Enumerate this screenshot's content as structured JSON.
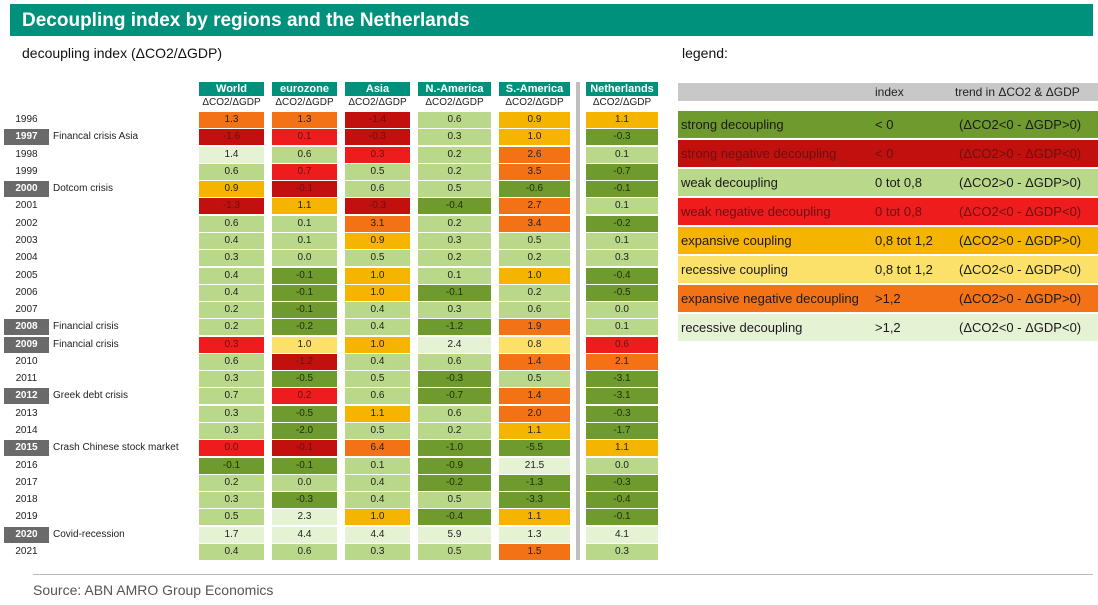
{
  "title": "Decoupling index by regions and the Netherlands",
  "subtitle": "decoupling index (ΔCO2/ΔGDP)",
  "legend_title": "legend:",
  "source": "Source: ABN AMRO Group Economics",
  "colors": {
    "header": "#00917c",
    "sd": "#6f9a2e",
    "snd": "#c1100d",
    "wd": "#b9d88a",
    "wnd": "#ee1c1c",
    "ec": "#f5b400",
    "rc": "#fbe06a",
    "end": "#f47216",
    "rd": "#e6f2d4"
  },
  "chart_data": {
    "type": "table",
    "title": "decoupling index (ΔCO2/ΔGDP)",
    "columns": [
      {
        "name": "World",
        "unit": "ΔCO2/ΔGDP"
      },
      {
        "name": "eurozone",
        "unit": "ΔCO2/ΔGDP"
      },
      {
        "name": "Asia",
        "unit": "ΔCO2/ΔGDP"
      },
      {
        "name": "N.-America",
        "unit": "ΔCO2/ΔGDP"
      },
      {
        "name": "S.-America",
        "unit": "ΔCO2/ΔGDP"
      },
      {
        "name": "Netherlands",
        "unit": "ΔCO2/ΔGDP"
      }
    ],
    "rows": [
      {
        "year": "1996",
        "event": "",
        "hl": false,
        "values": [
          "1.3",
          "1.3",
          "-1.4",
          "0.6",
          "0.9",
          "1.1"
        ],
        "cats": [
          "end",
          "end",
          "snd",
          "wd",
          "ec",
          "ec"
        ]
      },
      {
        "year": "1997",
        "event": "Financal crisis Asia",
        "hl": true,
        "values": [
          "-1.6",
          "0.1",
          "-0.3",
          "0.3",
          "1.0",
          "-0.3"
        ],
        "cats": [
          "snd",
          "wnd",
          "snd",
          "wd",
          "ec",
          "sd"
        ]
      },
      {
        "year": "1998",
        "event": "",
        "hl": false,
        "values": [
          "1.4",
          "0.6",
          "0.3",
          "0.2",
          "2.6",
          "0.1"
        ],
        "cats": [
          "rd",
          "wd",
          "wnd",
          "wd",
          "end",
          "wd"
        ]
      },
      {
        "year": "1999",
        "event": "",
        "hl": false,
        "values": [
          "0.6",
          "0.7",
          "0.5",
          "0.2",
          "3.5",
          "-0.7"
        ],
        "cats": [
          "wd",
          "wnd",
          "wd",
          "wd",
          "end",
          "sd"
        ]
      },
      {
        "year": "2000",
        "event": "Dotcom crisis",
        "hl": true,
        "values": [
          "0.9",
          "-0.1",
          "0.6",
          "0.5",
          "-0.6",
          "-0.1"
        ],
        "cats": [
          "ec",
          "snd",
          "wd",
          "wd",
          "sd",
          "sd"
        ]
      },
      {
        "year": "2001",
        "event": "",
        "hl": false,
        "values": [
          "-1.3",
          "1.1",
          "-0.3",
          "-0.4",
          "2.7",
          "0.1"
        ],
        "cats": [
          "snd",
          "ec",
          "snd",
          "sd",
          "end",
          "wd"
        ]
      },
      {
        "year": "2002",
        "event": "",
        "hl": false,
        "values": [
          "0.6",
          "0.1",
          "3.1",
          "0.2",
          "3.4",
          "-0.2"
        ],
        "cats": [
          "wd",
          "wd",
          "end",
          "wd",
          "end",
          "sd"
        ]
      },
      {
        "year": "2003",
        "event": "",
        "hl": false,
        "values": [
          "0.4",
          "0.1",
          "0.9",
          "0.3",
          "0.5",
          "0.1"
        ],
        "cats": [
          "wd",
          "wd",
          "ec",
          "wd",
          "wd",
          "wd"
        ]
      },
      {
        "year": "2004",
        "event": "",
        "hl": false,
        "values": [
          "0.3",
          "0.0",
          "0.5",
          "0.2",
          "0.2",
          "0.3"
        ],
        "cats": [
          "wd",
          "wd",
          "wd",
          "wd",
          "wd",
          "wd"
        ]
      },
      {
        "year": "2005",
        "event": "",
        "hl": false,
        "values": [
          "0.4",
          "-0.1",
          "1.0",
          "0.1",
          "1.0",
          "-0.4"
        ],
        "cats": [
          "wd",
          "sd",
          "ec",
          "wd",
          "ec",
          "sd"
        ]
      },
      {
        "year": "2006",
        "event": "",
        "hl": false,
        "values": [
          "0.4",
          "-0.1",
          "1.0",
          "-0.1",
          "0.2",
          "-0.5"
        ],
        "cats": [
          "wd",
          "sd",
          "ec",
          "sd",
          "wd",
          "sd"
        ]
      },
      {
        "year": "2007",
        "event": "",
        "hl": false,
        "values": [
          "0.2",
          "-0.1",
          "0.4",
          "0.3",
          "0.6",
          "0.0"
        ],
        "cats": [
          "wd",
          "sd",
          "wd",
          "wd",
          "wd",
          "wd"
        ]
      },
      {
        "year": "2008",
        "event": "Financial crisis",
        "hl": true,
        "values": [
          "0.2",
          "-0.2",
          "0.4",
          "-1.2",
          "1.9",
          "0.1"
        ],
        "cats": [
          "wd",
          "sd",
          "wd",
          "sd",
          "end",
          "wd"
        ]
      },
      {
        "year": "2009",
        "event": "Financial crisis",
        "hl": true,
        "values": [
          "0.3",
          "1.0",
          "1.0",
          "2.4",
          "0.8",
          "0.6"
        ],
        "cats": [
          "wnd",
          "rc",
          "ec",
          "rd",
          "rc",
          "wnd"
        ]
      },
      {
        "year": "2010",
        "event": "",
        "hl": false,
        "values": [
          "0.6",
          "-1.2",
          "0.4",
          "0.6",
          "1.4",
          "2.1"
        ],
        "cats": [
          "wd",
          "snd",
          "wd",
          "wd",
          "end",
          "end"
        ]
      },
      {
        "year": "2011",
        "event": "",
        "hl": false,
        "values": [
          "0.3",
          "-0.5",
          "0.5",
          "-0.3",
          "0.5",
          "-3.1"
        ],
        "cats": [
          "wd",
          "sd",
          "wd",
          "sd",
          "wd",
          "sd"
        ]
      },
      {
        "year": "2012",
        "event": "Greek debt crisis",
        "hl": true,
        "values": [
          "0.7",
          "0.2",
          "0.6",
          "-0.7",
          "1.4",
          "-3.1"
        ],
        "cats": [
          "wd",
          "wnd",
          "wd",
          "sd",
          "end",
          "sd"
        ]
      },
      {
        "year": "2013",
        "event": "",
        "hl": false,
        "values": [
          "0.3",
          "-0.5",
          "1.1",
          "0.6",
          "2.0",
          "-0.3"
        ],
        "cats": [
          "wd",
          "sd",
          "ec",
          "wd",
          "end",
          "sd"
        ]
      },
      {
        "year": "2014",
        "event": "",
        "hl": false,
        "values": [
          "0.3",
          "-2.0",
          "0.5",
          "0.2",
          "1.1",
          "-1.7"
        ],
        "cats": [
          "wd",
          "sd",
          "wd",
          "wd",
          "ec",
          "sd"
        ]
      },
      {
        "year": "2015",
        "event": "Crash Chinese stock market",
        "hl": true,
        "values": [
          "0.0",
          "-0.1",
          "6.4",
          "-1.0",
          "-5.5",
          "1.1"
        ],
        "cats": [
          "wnd",
          "snd",
          "end",
          "sd",
          "sd",
          "ec"
        ]
      },
      {
        "year": "2016",
        "event": "",
        "hl": false,
        "values": [
          "-0.1",
          "-0.1",
          "0.1",
          "-0.9",
          "21.5",
          "0.0"
        ],
        "cats": [
          "sd",
          "sd",
          "wd",
          "sd",
          "rd",
          "wd"
        ]
      },
      {
        "year": "2017",
        "event": "",
        "hl": false,
        "values": [
          "0.2",
          "0.0",
          "0.4",
          "-0.2",
          "-1.3",
          "-0.3"
        ],
        "cats": [
          "wd",
          "wd",
          "wd",
          "sd",
          "sd",
          "sd"
        ]
      },
      {
        "year": "2018",
        "event": "",
        "hl": false,
        "values": [
          "0.3",
          "-0.3",
          "0.4",
          "0.5",
          "-3.3",
          "-0.4"
        ],
        "cats": [
          "wd",
          "sd",
          "wd",
          "wd",
          "sd",
          "sd"
        ]
      },
      {
        "year": "2019",
        "event": "",
        "hl": false,
        "values": [
          "0.5",
          "2.3",
          "1.0",
          "-0.4",
          "1.1",
          "-0.1"
        ],
        "cats": [
          "wd",
          "rd",
          "ec",
          "sd",
          "ec",
          "sd"
        ]
      },
      {
        "year": "2020",
        "event": "Covid-recession",
        "hl": true,
        "values": [
          "1.7",
          "4.4",
          "4.4",
          "5.9",
          "1.3",
          "4.1"
        ],
        "cats": [
          "rd",
          "rd",
          "rd",
          "rd",
          "rd",
          "rd"
        ]
      },
      {
        "year": "2021",
        "event": "",
        "hl": false,
        "values": [
          "0.4",
          "0.6",
          "0.3",
          "0.5",
          "1.5",
          "0.3"
        ],
        "cats": [
          "wd",
          "wd",
          "wd",
          "wd",
          "end",
          "wd"
        ]
      }
    ],
    "legend": {
      "headers": {
        "index": "index",
        "trend": "trend in ΔCO2 & ΔGDP"
      },
      "items": [
        {
          "key": "sd",
          "name": "strong decoupling",
          "index": "< 0",
          "trend": "(ΔCO2<0 - ΔGDP>0)"
        },
        {
          "key": "snd",
          "name": "strong negative decoupling",
          "index": "< 0",
          "trend": "(ΔCO2>0 - ΔGDP<0)"
        },
        {
          "key": "wd",
          "name": "weak decoupling",
          "index": "0 tot 0,8",
          "trend": "(ΔCO2>0 - ΔGDP>0)"
        },
        {
          "key": "wnd",
          "name": "weak negative decoupling",
          "index": "0 tot 0,8",
          "trend": "(ΔCO2<0 - ΔGDP<0)"
        },
        {
          "key": "ec",
          "name": "expansive coupling",
          "index": "0,8 tot 1,2",
          "trend": "(ΔCO2>0 - ΔGDP>0)"
        },
        {
          "key": "rc",
          "name": "recessive coupling",
          "index": "0,8 tot 1,2",
          "trend": "(ΔCO2<0 - ΔGDP<0)"
        },
        {
          "key": "end",
          "name": "expansive negative decoupling",
          "index": ">1,2",
          "trend": "(ΔCO2>0 - ΔGDP>0)"
        },
        {
          "key": "rd",
          "name": "recessive decoupling",
          "index": ">1,2",
          "trend": "(ΔCO2<0 - ΔGDP<0)"
        }
      ]
    }
  }
}
